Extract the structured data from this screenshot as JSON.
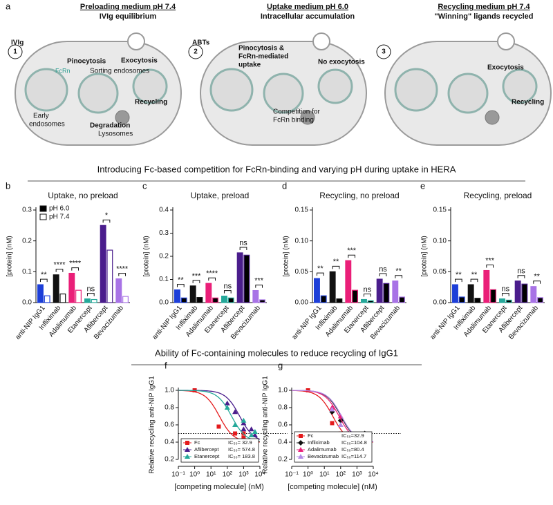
{
  "panel_a": {
    "letter": "a",
    "step1": {
      "number": "1",
      "heading": "Preloading medium pH 7.4",
      "subheading": "IVIg equilibrium",
      "ivig": "IVIg",
      "fcrn": "FcRn",
      "pinocytosis": "Pinocytosis",
      "sorting": "Sorting endosomes",
      "exocytosis": "Exocytosis",
      "recycling": "Recycling",
      "early": [
        "Early",
        "endosomes"
      ],
      "degradation": "Degradation",
      "lysosomes": "Lysosomes"
    },
    "step2": {
      "number": "2",
      "heading": "Uptake medium pH 6.0",
      "subheading": "Intracellular accumulation",
      "abts": "ABTs",
      "uptake": [
        "Pinocytosis &",
        "FcRn-mediated",
        "uptake"
      ],
      "no_exocytosis": "No exocytosis",
      "competition": [
        "Competition for",
        "FcRn binding"
      ]
    },
    "step3": {
      "number": "3",
      "heading": "Recycling medium pH 7.4",
      "subheading": "\"Winning\" ligands recycled",
      "exocytosis": "Exocytosis",
      "recycling": "Recycling"
    }
  },
  "section_titles": [
    "Introducing Fc-based competition for FcRn-binding and varying pH during uptake in HERA",
    "Ability of Fc-containing molecules to reduce recycling of IgG1"
  ],
  "chart_data": [
    {
      "type": "bar",
      "panel": "b",
      "title": "Uptake, no preload",
      "ylabel": "[protein] (nM)",
      "categories": [
        "anti-NIP IgG1",
        "Infliximab",
        "Adalimumab",
        "Etanercept",
        "Aflibercept",
        "Bevacizumab"
      ],
      "category_colors": [
        "#1d3fd8",
        "#111111",
        "#ea1f78",
        "#25a99a",
        "#4a1d8c",
        "#a873e6"
      ],
      "series": [
        {
          "name": "pH 6.0",
          "color": "#000000",
          "values": [
            0.058,
            0.09,
            0.095,
            0.012,
            0.25,
            0.077
          ]
        },
        {
          "name": "pH 7.4",
          "color": "#ffffff",
          "values": [
            0.022,
            0.028,
            0.04,
            0.01,
            0.17,
            0.02
          ]
        }
      ],
      "annotations": [
        "**",
        "****",
        "****",
        "ns",
        "*",
        "****"
      ],
      "ylim": [
        0,
        0.3
      ],
      "yticks": [
        {
          "value": 0,
          "label": "0.0"
        },
        0.1,
        0.2,
        0.3
      ],
      "legend": "upper left"
    },
    {
      "type": "bar",
      "panel": "c",
      "title": "Uptake, preload",
      "ylabel": "[protein] (nM)",
      "categories": [
        "anti-NIP IgG1",
        "Infliximab",
        "Adalimumab",
        "Etanercept",
        "Aflibercept",
        "Bevacizumab"
      ],
      "category_colors": [
        "#1d3fd8",
        "#111111",
        "#ea1f78",
        "#25a99a",
        "#4a1d8c",
        "#a873e6"
      ],
      "series": [
        {
          "values": [
            0.055,
            0.072,
            0.083,
            0.028,
            0.215,
            0.052
          ]
        },
        {
          "values": [
            0.02,
            0.022,
            0.02,
            0.02,
            0.205,
            0.012
          ]
        }
      ],
      "annotations": [
        "**",
        "***",
        "****",
        "ns",
        "ns",
        "***"
      ],
      "ylim": [
        0,
        0.4
      ],
      "yticks": [
        {
          "value": 0,
          "label": "0.0"
        },
        0.1,
        0.2,
        0.3,
        0.4
      ]
    },
    {
      "type": "bar",
      "panel": "d",
      "title": "Recycling, no preload",
      "ylabel": "[protein] (nM)",
      "categories": [
        "anti-NIP IgG1",
        "Infliximab",
        "Adalimumab",
        "Etanercept",
        "Aflibercept",
        "Bevacizumab"
      ],
      "category_colors": [
        "#1d3fd8",
        "#111111",
        "#ea1f78",
        "#25a99a",
        "#4a1d8c",
        "#a873e6"
      ],
      "series": [
        {
          "values": [
            0.039,
            0.05,
            0.068,
            0.005,
            0.038,
            0.035
          ]
        },
        {
          "values": [
            0.011,
            0.006,
            0.02,
            0.003,
            0.031,
            0.009
          ]
        }
      ],
      "annotations": [
        "**",
        "**",
        "***",
        "ns",
        "ns",
        "**"
      ],
      "ylim": [
        0,
        0.15
      ],
      "yticks": [
        {
          "value": 0,
          "label": "0.00"
        },
        0.05,
        {
          "value": 0.1,
          "label": "0.10"
        },
        0.15
      ]
    },
    {
      "type": "bar",
      "panel": "e",
      "title": "Recycling, preload",
      "ylabel": "[protein] (nM)",
      "categories": [
        "anti-NIP IgG1",
        "Infliximab",
        "Adalimumab",
        "Etanercept",
        "Aflibercept",
        "Bevacizumab"
      ],
      "category_colors": [
        "#1d3fd8",
        "#111111",
        "#ea1f78",
        "#25a99a",
        "#4a1d8c",
        "#a873e6"
      ],
      "series": [
        {
          "values": [
            0.029,
            0.029,
            0.052,
            0.006,
            0.035,
            0.026
          ]
        },
        {
          "values": [
            0.009,
            0.007,
            0.021,
            0.004,
            0.03,
            0.008
          ]
        }
      ],
      "annotations": [
        "**",
        "**",
        "***",
        "ns",
        "ns",
        "**"
      ],
      "ylim": [
        0,
        0.15
      ],
      "yticks": [
        {
          "value": 0,
          "label": "0.00"
        },
        0.05,
        {
          "value": 0.1,
          "label": "0.10"
        },
        0.15
      ]
    },
    {
      "type": "scatter",
      "panel": "f",
      "xlabel": "[competing molecule] (nM)",
      "ylabel": "Relative recycling anti-NIP IgG1",
      "xscale": "log",
      "xlim": [
        0.1,
        10000
      ],
      "xticks": [
        {
          "value": 0.1,
          "label": "10⁻¹"
        },
        {
          "value": 1,
          "label": "10⁰"
        },
        {
          "value": 10,
          "label": "10¹"
        },
        {
          "value": 100,
          "label": "10²"
        },
        {
          "value": 1000,
          "label": "10³"
        },
        {
          "value": 10000,
          "label": "10⁴"
        }
      ],
      "ylim": [
        0.2,
        1.0
      ],
      "yticks": [
        0.2,
        0.4,
        0.6,
        0.8,
        {
          "value": 1.0,
          "label": "1.0"
        }
      ],
      "reference_line": 0.5,
      "series": [
        {
          "name": "Fc",
          "color": "#e41a1c",
          "marker": "square",
          "ic50": {
            "value": 32.9,
            "label": "IC₅₀= 32.9"
          },
          "x": [
            1,
            30,
            100,
            300,
            1000,
            1000,
            3000
          ],
          "values": [
            1.0,
            0.58,
            0.42,
            0.5,
            0.45,
            0.5,
            0.24
          ]
        },
        {
          "name": "Aflibercept",
          "color": "#4a1d8c",
          "marker": "triangle",
          "ic50": {
            "value": 574.8,
            "label": "IC₅₀= 574.8"
          },
          "x": [
            100,
            300,
            1000,
            1000,
            3000,
            5000
          ],
          "values": [
            0.85,
            0.75,
            0.62,
            0.55,
            0.55,
            0.48
          ]
        },
        {
          "name": "Etanercept",
          "color": "#25a99a",
          "marker": "triangle",
          "ic50": {
            "value": 183.8,
            "label": "IC₅₀= 183.8"
          },
          "x": [
            100,
            300,
            1000,
            3000,
            5000
          ],
          "values": [
            0.8,
            0.6,
            0.65,
            0.48,
            0.52
          ]
        }
      ]
    },
    {
      "type": "scatter",
      "panel": "g",
      "xlabel": "[competing molecule] (nM)",
      "ylabel": "Relative recycling anti-NIP IgG1",
      "xscale": "log",
      "xlim": [
        0.1,
        10000
      ],
      "xticks": [
        {
          "value": 0.1,
          "label": "10⁻¹"
        },
        {
          "value": 1,
          "label": "10⁰"
        },
        {
          "value": 10,
          "label": "10¹"
        },
        {
          "value": 100,
          "label": "10²"
        },
        {
          "value": 1000,
          "label": "10³"
        },
        {
          "value": 10000,
          "label": "10⁴"
        }
      ],
      "ylim": [
        0.2,
        1.0
      ],
      "yticks": [
        0.2,
        0.4,
        0.6,
        0.8,
        {
          "value": 1.0,
          "label": "1.0"
        }
      ],
      "reference_line": 0.5,
      "series": [
        {
          "name": "Fc",
          "color": "#e41a1c",
          "marker": "square",
          "ic50": {
            "value": 32.9,
            "label": "IC₅₀=32.9"
          },
          "x": [
            1,
            30,
            100,
            300,
            1000,
            3000
          ],
          "values": [
            1.0,
            0.62,
            0.5,
            0.5,
            0.25,
            0.4
          ]
        },
        {
          "name": "Infliximab",
          "color": "#111111",
          "marker": "diamond",
          "ic50": {
            "value": 104.8,
            "label": "IC₅₀=104.8"
          },
          "x": [
            30,
            100,
            300,
            1000,
            3000
          ],
          "values": [
            0.75,
            0.65,
            0.5,
            0.45,
            0.5
          ]
        },
        {
          "name": "Adalimumab",
          "color": "#ea1f78",
          "marker": "triangle",
          "ic50": {
            "value": 80.4,
            "label": "IC₅₀=80.4"
          },
          "x": [
            30,
            100,
            300,
            1000,
            3000
          ],
          "values": [
            0.8,
            0.7,
            0.45,
            0.45,
            0.4
          ]
        },
        {
          "name": "Bevacizumab",
          "color": "#b48ae6",
          "marker": "triangle",
          "ic50": {
            "value": 114.7,
            "label": "IC₅₀=114.7"
          },
          "x": [
            30,
            100,
            300,
            1000,
            3000
          ],
          "values": [
            0.78,
            0.6,
            0.5,
            0.42,
            0.4
          ]
        }
      ]
    }
  ]
}
